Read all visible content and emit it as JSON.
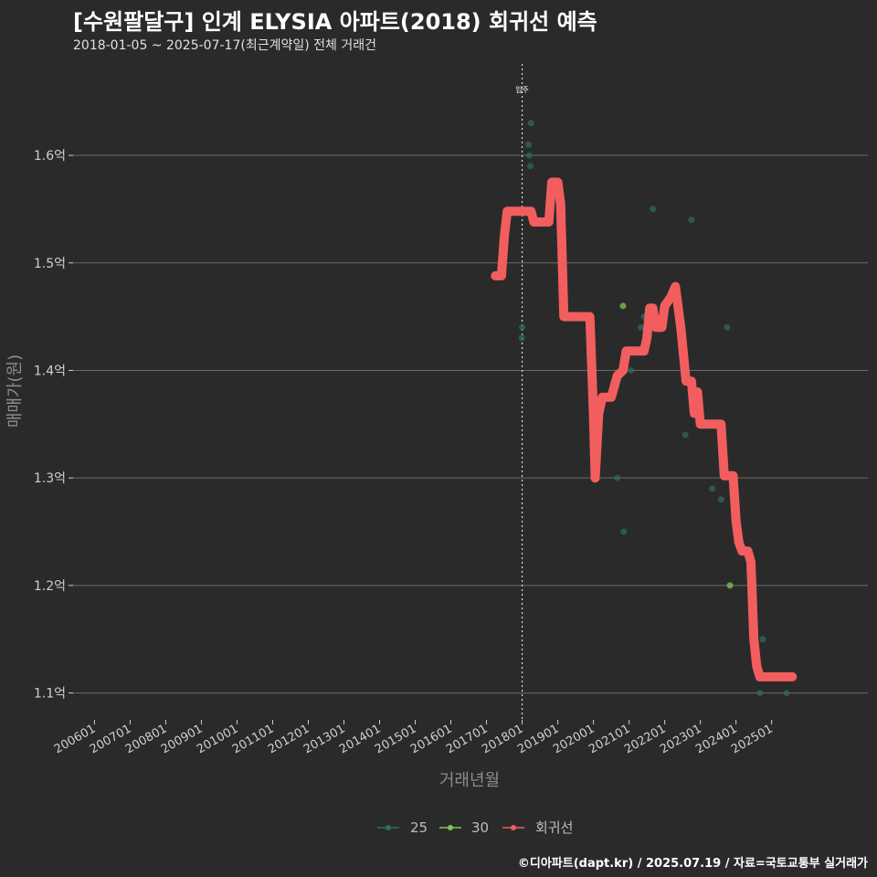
{
  "header": {
    "title": "[수원팔달구] 인계 ELYSIA 아파트(2018) 회귀선 예측",
    "subtitle": "2018-01-05 ~ 2025-07-17(최근계약일) 전체 거래건"
  },
  "footer": {
    "credit": "©디아파트(dapt.kr) / 2025.07.19 / 자료=국토교통부 실거래가"
  },
  "colors": {
    "background": "#2b2a2b",
    "grid": "#6a6a6a",
    "series_25": "#2a6f62",
    "series_30": "#7ec850",
    "regression": "#f25e5e",
    "marker_line": "#d9d9d9"
  },
  "chart_data": {
    "type": "scatter",
    "xlabel": "거래년월",
    "ylabel": "매매가(원)",
    "x_unit": "decimal year",
    "xlim": [
      2005.4,
      2027.7
    ],
    "ylim": [
      1.075,
      1.685
    ],
    "y_ticks": [
      1.1,
      1.2,
      1.3,
      1.4,
      1.5,
      1.6
    ],
    "y_tick_labels": [
      "1.1억",
      "1.2억",
      "1.3억",
      "1.4억",
      "1.5억",
      "1.6억"
    ],
    "x_ticks": [
      2006,
      2007,
      2008,
      2009,
      2010,
      2011,
      2012,
      2013,
      2014,
      2015,
      2016,
      2017,
      2018,
      2019,
      2020,
      2021,
      2022,
      2023,
      2024,
      2025
    ],
    "x_tick_labels": [
      "200601",
      "200701",
      "200801",
      "200901",
      "201001",
      "201101",
      "201201",
      "201301",
      "201401",
      "201501",
      "201601",
      "201701",
      "201801",
      "201901",
      "202001",
      "202101",
      "202201",
      "202301",
      "202401",
      "202501"
    ],
    "annotation": {
      "label": "입주",
      "x": 2018.0
    },
    "legend": {
      "position": "bottom",
      "items": [
        "25",
        "30",
        "회귀선"
      ]
    },
    "series": [
      {
        "name": "25",
        "kind": "points",
        "points": [
          [
            2017.99,
            1.43
          ],
          [
            2018.0,
            1.44
          ],
          [
            2018.18,
            1.61
          ],
          [
            2018.2,
            1.6
          ],
          [
            2018.23,
            1.59
          ],
          [
            2018.25,
            1.63
          ],
          [
            2020.67,
            1.3
          ],
          [
            2020.85,
            1.25
          ],
          [
            2021.05,
            1.4
          ],
          [
            2021.33,
            1.44
          ],
          [
            2021.42,
            1.45
          ],
          [
            2021.67,
            1.55
          ],
          [
            2022.58,
            1.34
          ],
          [
            2022.75,
            1.54
          ],
          [
            2023.33,
            1.29
          ],
          [
            2023.58,
            1.28
          ],
          [
            2023.75,
            1.44
          ],
          [
            2024.67,
            1.1
          ],
          [
            2024.75,
            1.15
          ],
          [
            2025.42,
            1.1
          ]
        ]
      },
      {
        "name": "30",
        "kind": "points",
        "points": [
          [
            2020.83,
            1.46
          ],
          [
            2023.83,
            1.2
          ]
        ]
      },
      {
        "name": "회귀선",
        "kind": "line",
        "points": [
          [
            2017.25,
            1.488
          ],
          [
            2017.42,
            1.488
          ],
          [
            2017.5,
            1.525
          ],
          [
            2017.58,
            1.548
          ],
          [
            2018.25,
            1.548
          ],
          [
            2018.33,
            1.538
          ],
          [
            2018.75,
            1.538
          ],
          [
            2018.83,
            1.575
          ],
          [
            2019.0,
            1.575
          ],
          [
            2019.08,
            1.555
          ],
          [
            2019.17,
            1.45
          ],
          [
            2019.9,
            1.45
          ],
          [
            2020.0,
            1.36
          ],
          [
            2020.05,
            1.3
          ],
          [
            2020.15,
            1.36
          ],
          [
            2020.25,
            1.375
          ],
          [
            2020.5,
            1.375
          ],
          [
            2020.67,
            1.395
          ],
          [
            2020.83,
            1.4
          ],
          [
            2020.92,
            1.418
          ],
          [
            2021.42,
            1.418
          ],
          [
            2021.5,
            1.43
          ],
          [
            2021.58,
            1.458
          ],
          [
            2021.67,
            1.458
          ],
          [
            2021.75,
            1.44
          ],
          [
            2021.92,
            1.44
          ],
          [
            2022.0,
            1.46
          ],
          [
            2022.17,
            1.468
          ],
          [
            2022.3,
            1.478
          ],
          [
            2022.45,
            1.44
          ],
          [
            2022.6,
            1.39
          ],
          [
            2022.75,
            1.39
          ],
          [
            2022.83,
            1.36
          ],
          [
            2022.92,
            1.38
          ],
          [
            2023.0,
            1.35
          ],
          [
            2023.33,
            1.35
          ],
          [
            2023.58,
            1.35
          ],
          [
            2023.67,
            1.302
          ],
          [
            2023.92,
            1.302
          ],
          [
            2024.0,
            1.26
          ],
          [
            2024.08,
            1.24
          ],
          [
            2024.17,
            1.232
          ],
          [
            2024.33,
            1.232
          ],
          [
            2024.42,
            1.222
          ],
          [
            2024.5,
            1.15
          ],
          [
            2024.58,
            1.125
          ],
          [
            2024.67,
            1.115
          ],
          [
            2025.58,
            1.115
          ]
        ]
      }
    ]
  }
}
